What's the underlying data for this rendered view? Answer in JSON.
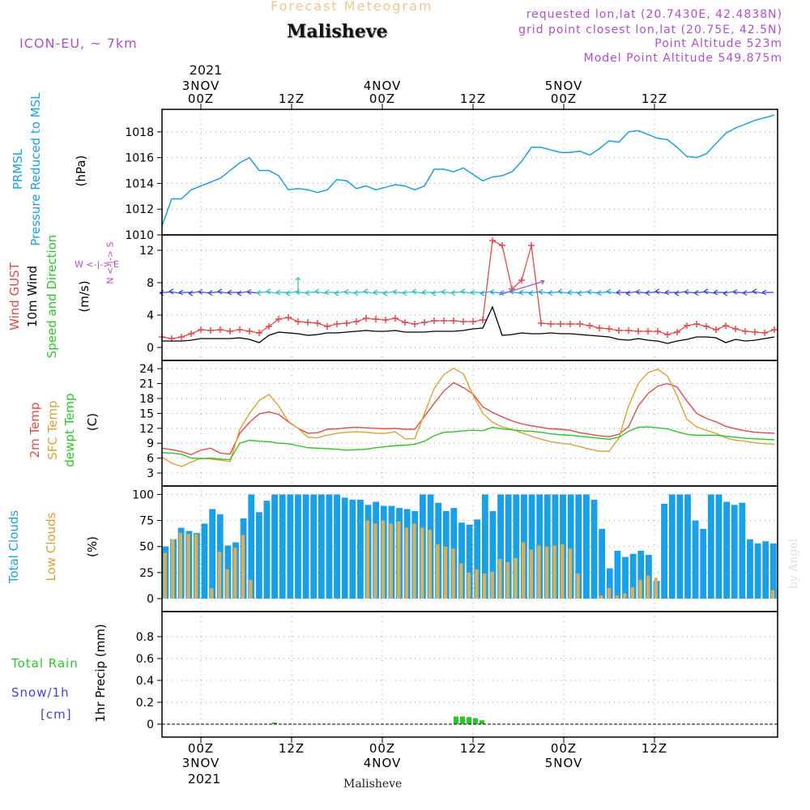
{
  "header": {
    "forecast_label": "Forecast Meteogram",
    "location": "Malisheve",
    "model": "ICON-EU, ~ 7km",
    "requested": "requested lon,lat (20.7430E, 42.4838N)",
    "gridpoint": "grid point closest lon,lat (20.75E, 42.5N)",
    "altitude": "Point Altitude 523m",
    "model_altitude": "Model Point Altitude 549.875m",
    "year": "2021",
    "footer_location": "Malisheve",
    "watermark": "by Angel"
  },
  "colors": {
    "pressure": "#1aa0e8",
    "gust": "#e84848",
    "wind": "#000000",
    "temp": "#e84848",
    "sfc": "#e0a030",
    "dewpt": "#28c828",
    "total_clouds": "#1aa0e8",
    "low_clouds": "#d4b060",
    "rain": "#28c828",
    "snow": "#4040e0",
    "purple": "#b04fd0"
  },
  "axis_labels": {
    "pressure_line1": "PRMSL",
    "pressure_line2": "Pressure Reduced to MSL",
    "pressure_unit": "(hPa)",
    "gust": "Wind GUST",
    "wind": "10m Wind",
    "direction": "Speed and Direction",
    "wind_unit": "(m/s)",
    "compass_ns": "N <-|-> S",
    "compass_we": "W <-|-> E",
    "temp2m": "2m Temp",
    "sfc": "SFC Temp",
    "dewpt": "dewpt Temp",
    "temp_unit": "(C)",
    "total_clouds": "Total Clouds",
    "low_clouds": "Low Clouds",
    "cloud_unit": "(%)",
    "total_rain": "Total  Rain",
    "snow": "Snow/1h",
    "snow_unit": "[cm]",
    "precip": "1hr Precip (mm)"
  },
  "chart_data": [
    {
      "type": "line",
      "title": "PRMSL Pressure Reduced to MSL",
      "ylabel": "(hPa)",
      "ylim": [
        1010,
        1019.5
      ],
      "yticks": [
        "1010",
        "1012",
        "1014",
        "1016",
        "1018"
      ],
      "x_hours": [
        0,
        3,
        6,
        9,
        12,
        15,
        18,
        21,
        24,
        27,
        30,
        33,
        36,
        39,
        42,
        45,
        48,
        51,
        54,
        57,
        60,
        63,
        66,
        69,
        72,
        75,
        78,
        81,
        84,
        87,
        90,
        93,
        96,
        99,
        102,
        105,
        108,
        111,
        114,
        117,
        120,
        123,
        126,
        129,
        132,
        135,
        138,
        141,
        144,
        147,
        150,
        153,
        156,
        159,
        162,
        165,
        168,
        171,
        174,
        177,
        180,
        183,
        186,
        189
      ],
      "series": [
        {
          "name": "PRMSL",
          "values": [
            1010.7,
            1012.8,
            1012.8,
            1013.5,
            1013.8,
            1014.1,
            1014.4,
            1015.0,
            1015.6,
            1016.0,
            1015.0,
            1015.0,
            1014.6,
            1013.5,
            1013.6,
            1013.5,
            1013.3,
            1013.5,
            1014.3,
            1014.2,
            1013.6,
            1013.8,
            1013.5,
            1013.7,
            1013.9,
            1013.8,
            1013.5,
            1013.8,
            1015.1,
            1015.1,
            1014.9,
            1015.2,
            1014.7,
            1014.2,
            1014.5,
            1014.6,
            1014.9,
            1015.7,
            1016.8,
            1016.8,
            1016.6,
            1016.4,
            1016.4,
            1016.5,
            1016.2,
            1016.7,
            1017.3,
            1017.2,
            1018.0,
            1018.1,
            1017.8,
            1017.5,
            1017.4,
            1016.8,
            1016.1,
            1016.0,
            1016.3,
            1017.1,
            1017.9,
            1018.3,
            1018.6,
            1018.9,
            1019.1,
            1019.3
          ]
        }
      ]
    },
    {
      "type": "line",
      "title": "Wind GUST / 10m Wind Speed and Direction",
      "ylabel": "(m/s)",
      "ylim": [
        0,
        13.5
      ],
      "yticks": [
        "0",
        "4",
        "8",
        "12"
      ],
      "x_hours": [
        0,
        3,
        6,
        9,
        12,
        15,
        18,
        21,
        24,
        27,
        30,
        33,
        36,
        39,
        42,
        45,
        48,
        51,
        54,
        57,
        60,
        63,
        66,
        69,
        72,
        75,
        78,
        81,
        84,
        87,
        90,
        93,
        96,
        99,
        102,
        105,
        108,
        111,
        114,
        117,
        120,
        123,
        126,
        129,
        132,
        135,
        138,
        141,
        144,
        147,
        150,
        153,
        156,
        159,
        162,
        165,
        168,
        171,
        174,
        177,
        180,
        183,
        186,
        189
      ],
      "series": [
        {
          "name": "Wind GUST",
          "values": [
            1.3,
            1.1,
            1.3,
            1.7,
            2.2,
            2.1,
            2.2,
            2.0,
            2.2,
            2.0,
            1.8,
            2.6,
            3.5,
            3.7,
            3.2,
            3.1,
            3.0,
            2.6,
            2.9,
            3.0,
            3.2,
            3.6,
            3.5,
            3.4,
            3.6,
            3.1,
            2.9,
            3.1,
            3.3,
            3.3,
            3.3,
            3.2,
            3.2,
            3.4,
            13.2,
            12.6,
            7.2,
            8.3,
            12.6,
            3.0,
            2.9,
            2.9,
            2.9,
            2.9,
            2.7,
            2.4,
            2.3,
            2.1,
            2.1,
            2.0,
            2.0,
            2.0,
            1.6,
            1.9,
            2.7,
            2.9,
            2.6,
            2.2,
            2.7,
            2.3,
            2.0,
            1.9,
            1.8,
            2.2
          ]
        },
        {
          "name": "10m Wind",
          "values": [
            0.8,
            0.8,
            0.8,
            0.9,
            1.1,
            1.1,
            1.1,
            1.1,
            1.2,
            1.0,
            0.6,
            1.5,
            1.9,
            1.8,
            1.7,
            1.5,
            1.6,
            1.8,
            1.8,
            1.9,
            2.0,
            2.1,
            2.0,
            2.0,
            2.1,
            1.9,
            1.9,
            1.9,
            2.0,
            2.0,
            2.0,
            2.1,
            2.3,
            2.4,
            5.0,
            1.5,
            1.6,
            1.8,
            1.7,
            1.7,
            1.8,
            1.7,
            1.7,
            1.6,
            1.5,
            1.4,
            1.3,
            1.0,
            0.9,
            1.1,
            0.9,
            0.8,
            0.5,
            0.8,
            1.0,
            1.3,
            1.3,
            1.2,
            0.6,
            1.0,
            0.8,
            0.9,
            1.1,
            1.3
          ]
        }
      ]
    },
    {
      "type": "line",
      "title": "2m Temp / SFC Temp / dewpt Temp",
      "ylabel": "(C)",
      "ylim": [
        3,
        25
      ],
      "yticks": [
        "3",
        "6",
        "9",
        "12",
        "15",
        "18",
        "21",
        "24"
      ],
      "x_hours": [
        0,
        3,
        6,
        9,
        12,
        15,
        18,
        21,
        24,
        27,
        30,
        33,
        36,
        39,
        42,
        45,
        48,
        51,
        54,
        57,
        60,
        63,
        66,
        69,
        72,
        75,
        78,
        81,
        84,
        87,
        90,
        93,
        96,
        99,
        102,
        105,
        108,
        111,
        114,
        117,
        120,
        123,
        126,
        129,
        132,
        135,
        138,
        141,
        144,
        147,
        150,
        153,
        156,
        159,
        162,
        165,
        168,
        171,
        174,
        177,
        180,
        183,
        186,
        189
      ],
      "series": [
        {
          "name": "2m Temp",
          "values": [
            8.0,
            7.7,
            7.3,
            6.7,
            7.6,
            8.0,
            7.0,
            6.8,
            11.0,
            13.2,
            14.9,
            15.3,
            14.8,
            13.3,
            12.0,
            11.0,
            11.1,
            11.8,
            11.9,
            12.1,
            12.2,
            12.1,
            12.0,
            11.9,
            12.0,
            11.8,
            11.8,
            14.4,
            17.0,
            19.5,
            21.2,
            20.2,
            18.9,
            16.3,
            15.2,
            14.3,
            13.5,
            12.9,
            12.5,
            12.2,
            11.9,
            11.8,
            11.6,
            11.1,
            10.8,
            10.5,
            10.3,
            10.8,
            12.3,
            16.5,
            19.0,
            20.5,
            21.0,
            20.3,
            17.5,
            15.0,
            14.0,
            13.3,
            12.4,
            11.9,
            11.5,
            11.2,
            11.1,
            11.0
          ]
        },
        {
          "name": "SFC Temp",
          "values": [
            6.2,
            5.0,
            4.3,
            5.2,
            6.0,
            5.8,
            5.6,
            5.3,
            11.8,
            15.0,
            17.6,
            18.8,
            16.5,
            13.4,
            12.0,
            10.2,
            10.1,
            10.6,
            11.0,
            11.2,
            11.3,
            11.2,
            11.0,
            11.0,
            11.3,
            9.9,
            9.9,
            15.0,
            20.0,
            22.8,
            24.1,
            23.0,
            18.7,
            15.0,
            13.2,
            12.3,
            11.8,
            11.1,
            10.4,
            9.8,
            9.3,
            9.0,
            8.8,
            8.3,
            7.8,
            7.4,
            7.4,
            10.0,
            16.5,
            21.0,
            23.2,
            23.9,
            22.5,
            18.5,
            13.8,
            12.3,
            11.6,
            11.0,
            10.1,
            9.6,
            9.4,
            9.1,
            8.9,
            8.8
          ]
        },
        {
          "name": "dewpt Temp",
          "values": [
            7.1,
            7.0,
            6.8,
            6.0,
            5.9,
            6.0,
            5.8,
            5.7,
            9.0,
            9.6,
            9.4,
            9.3,
            9.0,
            8.9,
            8.5,
            8.1,
            8.0,
            7.9,
            7.8,
            7.6,
            7.7,
            7.8,
            8.1,
            8.3,
            8.5,
            8.6,
            8.8,
            9.4,
            10.5,
            11.2,
            11.3,
            11.5,
            11.6,
            11.5,
            12.2,
            11.9,
            11.7,
            11.5,
            11.4,
            11.2,
            10.9,
            10.7,
            10.6,
            10.4,
            10.2,
            10.0,
            9.8,
            10.2,
            11.4,
            12.2,
            12.3,
            12.1,
            11.9,
            11.3,
            10.8,
            10.6,
            10.6,
            10.6,
            10.4,
            10.2,
            10.0,
            9.9,
            9.8,
            9.7
          ]
        }
      ]
    },
    {
      "type": "bar",
      "title": "Total Clouds / Low Clouds",
      "ylabel": "(%)",
      "ylim": [
        0,
        105
      ],
      "yticks": [
        "0",
        "25",
        "50",
        "75",
        "100"
      ],
      "series": [
        {
          "name": "Total Clouds",
          "values": [
            50,
            57,
            68,
            65,
            63,
            72,
            86,
            81,
            51,
            54,
            77,
            100,
            83,
            94,
            100,
            100,
            100,
            100,
            100,
            100,
            100,
            100,
            100,
            97,
            95,
            95,
            90,
            93,
            89,
            89,
            87,
            86,
            84,
            100,
            100,
            92,
            84,
            87,
            73,
            71,
            76,
            100,
            84,
            100,
            100,
            100,
            100,
            100,
            100,
            100,
            100,
            100,
            100,
            100,
            100,
            95,
            67,
            29,
            46,
            40,
            43,
            46,
            42,
            17,
            91,
            100,
            100,
            100,
            75,
            67,
            100,
            100,
            93,
            90,
            92,
            57,
            53,
            55,
            53
          ]
        },
        {
          "name": "Low Clouds",
          "values": [
            44,
            57,
            63,
            62,
            62,
            0,
            10,
            45,
            28,
            49,
            61,
            18,
            0,
            0,
            0,
            0,
            0,
            0,
            0,
            0,
            0,
            0,
            0,
            0,
            0,
            0,
            75,
            72,
            75,
            72,
            74,
            68,
            72,
            68,
            66,
            52,
            50,
            48,
            34,
            25,
            28,
            24,
            26,
            38,
            35,
            39,
            54,
            47,
            51,
            50,
            51,
            52,
            48,
            24,
            0,
            0,
            3,
            10,
            3,
            5,
            11,
            18,
            22,
            20,
            0,
            0,
            0,
            0,
            0,
            0,
            0,
            0,
            0,
            0,
            0,
            0,
            0,
            0,
            8
          ]
        }
      ]
    },
    {
      "type": "bar",
      "title": "1hr Precip",
      "ylabel": "1hr Precip (mm)",
      "ylim": [
        0,
        1.0
      ],
      "yticks": [
        "0",
        "0.2",
        "0.4",
        "0.6",
        "0.8"
      ],
      "series": [
        {
          "name": "Total Rain",
          "values": [
            {
              "hour": 34,
              "value": 0.015
            },
            {
              "hour": 90,
              "value": 0.07
            },
            {
              "hour": 92,
              "value": 0.07
            },
            {
              "hour": 94,
              "value": 0.065
            },
            {
              "hour": 96,
              "value": 0.055
            },
            {
              "hour": 98,
              "value": 0.035
            }
          ]
        }
      ]
    }
  ],
  "time_axis": {
    "ticks": [
      {
        "hour": 12,
        "top": "00Z",
        "bottom": "00Z",
        "date": "3NOV"
      },
      {
        "hour": 40,
        "top": "12Z",
        "bottom": "12Z",
        "date": ""
      },
      {
        "hour": 68,
        "top": "00Z",
        "bottom": "00Z",
        "date": "4NOV"
      },
      {
        "hour": 96,
        "top": "12Z",
        "bottom": "12Z",
        "date": ""
      },
      {
        "hour": 124,
        "top": "00Z",
        "bottom": "00Z",
        "date": "5NOV"
      },
      {
        "hour": 152,
        "top": "12Z",
        "bottom": "12Z",
        "date": ""
      }
    ]
  }
}
